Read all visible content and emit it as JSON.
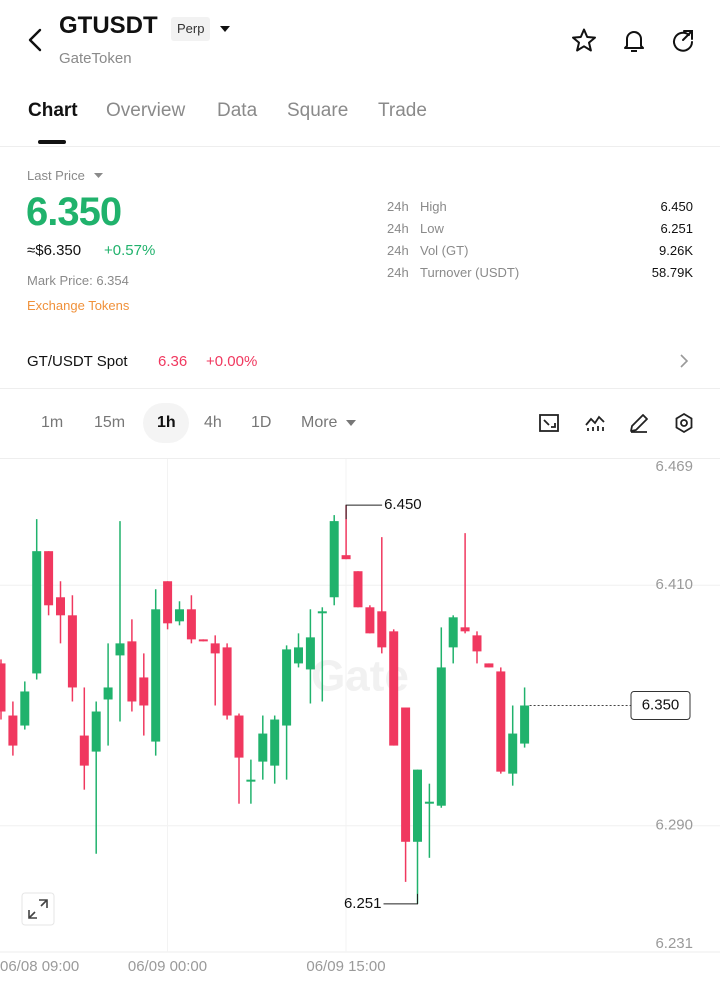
{
  "header": {
    "symbol": "GTUSDT",
    "badge": "Perp",
    "name": "GateToken"
  },
  "tabs": [
    "Chart",
    "Overview",
    "Data",
    "Square",
    "Trade"
  ],
  "price": {
    "label": "Last Price",
    "last": "6.350",
    "usd": "≈$6.350",
    "change": "+0.57%",
    "mark": "Mark Price: 6.354",
    "tag": "Exchange Tokens"
  },
  "stats": [
    {
      "period": "24h",
      "name": "High",
      "value": "6.450"
    },
    {
      "period": "24h",
      "name": "Low",
      "value": "6.251"
    },
    {
      "period": "24h",
      "name": "Vol (GT)",
      "value": "9.26K"
    },
    {
      "period": "24h",
      "name": "Turnover (USDT)",
      "value": "58.79K"
    }
  ],
  "spot": {
    "name": "GT/USDT Spot",
    "price": "6.36",
    "change": "+0.00%"
  },
  "intervals": [
    "1m",
    "15m",
    "1h",
    "4h",
    "1D",
    "More"
  ],
  "chart_data": {
    "type": "candlestick",
    "categories": [
      "06/08 09:00",
      null,
      null,
      null,
      null,
      null,
      null,
      null,
      null,
      null,
      null,
      null,
      null,
      null,
      null,
      "06/09 00:00",
      null,
      null,
      null,
      null,
      null,
      null,
      null,
      null,
      null,
      null,
      null,
      null,
      null,
      null,
      "06/09 15:00",
      null,
      null,
      null,
      null,
      null,
      null,
      null,
      null,
      null,
      null,
      null,
      null,
      null,
      null
    ],
    "open": [
      6.371,
      6.345,
      6.34,
      6.366,
      6.427,
      6.404,
      6.395,
      6.335,
      6.327,
      6.353,
      6.375,
      6.382,
      6.364,
      6.332,
      6.412,
      6.392,
      6.398,
      6.383,
      6.381,
      6.379,
      6.345,
      6.312,
      6.322,
      6.32,
      6.34,
      6.371,
      6.368,
      6.396,
      6.404,
      6.425,
      6.417,
      6.399,
      6.397,
      6.387,
      6.349,
      6.282,
      6.301,
      6.3,
      6.379,
      6.389,
      6.385,
      6.371,
      6.367,
      6.316,
      6.331
    ],
    "high": [
      6.373,
      6.352,
      6.362,
      6.443,
      6.427,
      6.412,
      6.405,
      6.359,
      6.352,
      6.381,
      6.442,
      6.393,
      6.376,
      6.408,
      6.412,
      6.402,
      6.405,
      6.383,
      6.385,
      6.381,
      6.346,
      6.323,
      6.345,
      6.345,
      6.38,
      6.386,
      6.398,
      6.399,
      6.445,
      6.45,
      6.417,
      6.4,
      6.434,
      6.388,
      6.349,
      6.318,
      6.311,
      6.389,
      6.395,
      6.436,
      6.387,
      6.371,
      6.369,
      6.35,
      6.359
    ],
    "low": [
      6.343,
      6.325,
      6.338,
      6.363,
      6.395,
      6.381,
      6.352,
      6.308,
      6.276,
      6.33,
      6.342,
      6.347,
      6.335,
      6.325,
      6.388,
      6.39,
      6.381,
      6.382,
      6.35,
      6.343,
      6.301,
      6.301,
      6.313,
      6.311,
      6.313,
      6.369,
      6.351,
      6.352,
      6.4,
      6.423,
      6.399,
      6.386,
      6.376,
      6.33,
      6.262,
      6.251,
      6.274,
      6.299,
      6.371,
      6.386,
      6.371,
      6.369,
      6.316,
      6.31,
      6.329
    ],
    "close": [
      6.347,
      6.33,
      6.357,
      6.427,
      6.4,
      6.395,
      6.359,
      6.32,
      6.347,
      6.359,
      6.381,
      6.352,
      6.35,
      6.398,
      6.391,
      6.398,
      6.383,
      6.382,
      6.376,
      6.345,
      6.324,
      6.313,
      6.336,
      6.343,
      6.378,
      6.379,
      6.384,
      6.397,
      6.442,
      6.423,
      6.399,
      6.386,
      6.379,
      6.33,
      6.282,
      6.318,
      6.302,
      6.369,
      6.394,
      6.387,
      6.377,
      6.369,
      6.317,
      6.336,
      6.35
    ],
    "ylim": [
      6.231,
      6.469
    ],
    "yticks": [
      {
        "value": 6.231,
        "label": "6.231"
      },
      {
        "value": 6.29,
        "label": "6.290"
      },
      {
        "value": 6.41,
        "label": "6.410"
      },
      {
        "value": 6.469,
        "label": "6.469"
      }
    ],
    "high_label": "6.450",
    "low_label": "6.251",
    "last_price": {
      "value": 6.35,
      "label": "6.350"
    },
    "watermark": "Gate",
    "colors": {
      "up": "#20b26c",
      "down": "#f0385f"
    },
    "grid": true
  }
}
